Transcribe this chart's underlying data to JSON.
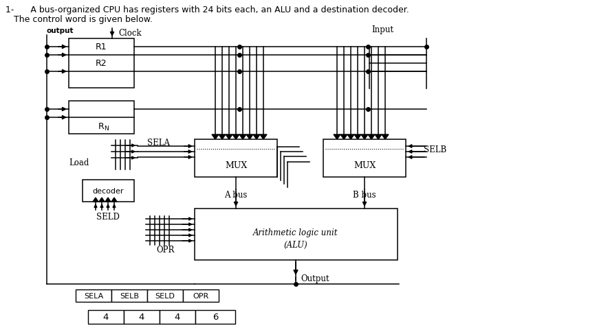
{
  "title_line1": "1-      A bus-organized CPU has registers with 24 bits each, an ALU and a destination decoder.",
  "title_line2": "   The control word is given below.",
  "bg_color": "#ffffff",
  "labels": {
    "output_top": "output",
    "clock": "Clock",
    "input": "Input",
    "r1": "R1",
    "r2": "R2",
    "rn": "RN",
    "sela": "SELA",
    "selb": "SELB",
    "seld": "SELD",
    "load": "Load",
    "mux": "MUX",
    "decoder": "decoder",
    "abus": "A bus",
    "bbus": "B bus",
    "alu_line1": "Arithmetic logic unit",
    "alu_line2": "(ALU)",
    "opr": "OPR",
    "output_bot": "Output",
    "ctrl_sela": "SELA",
    "ctrl_selb": "SELB",
    "ctrl_seld": "SELD",
    "ctrl_opr": "OPR",
    "val_sela": "4",
    "val_selb": "4",
    "val_seld": "4",
    "val_opr": "6"
  }
}
